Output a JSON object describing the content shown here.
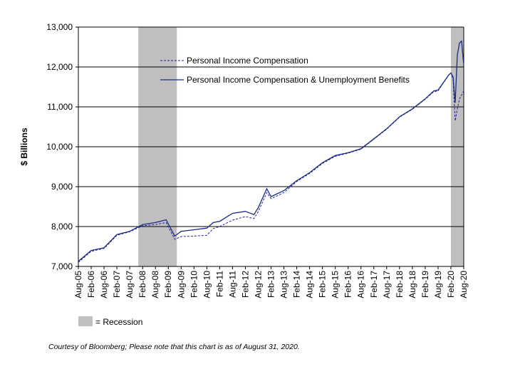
{
  "chart_data": {
    "type": "line",
    "title": "",
    "xlabel": "",
    "ylabel": "$ Billions",
    "ylim": [
      7000,
      13000
    ],
    "yticks": [
      "7,000",
      "8,000",
      "9,000",
      "10,000",
      "11,000",
      "12,000",
      "13,000"
    ],
    "ytick_values": [
      7000,
      8000,
      9000,
      10000,
      11000,
      12000,
      13000
    ],
    "xlim": [
      "2005-08",
      "2020-08"
    ],
    "xticks": [
      "Aug-05",
      "Feb-06",
      "Aug-06",
      "Feb-07",
      "Aug-07",
      "Feb-08",
      "Aug-08",
      "Feb-09",
      "Aug-09",
      "Feb-10",
      "Aug-10",
      "Feb-11",
      "Aug-11",
      "Feb-12",
      "Aug-12",
      "Feb-13",
      "Aug-13",
      "Feb-14",
      "Aug-14",
      "Feb-15",
      "Aug-15",
      "Feb-16",
      "Aug-16",
      "Feb-17",
      "Aug-17",
      "Feb-18",
      "Aug-18",
      "Feb-19",
      "Aug-19",
      "Feb-20",
      "Aug-20"
    ],
    "grid": "horizontal",
    "legend_placement": "top-left",
    "recessions": [
      [
        "2007-12",
        "2009-06"
      ],
      [
        "2020-02",
        "2020-08"
      ]
    ],
    "recession_label": "= Recession",
    "x": [
      "2005-08",
      "2006-02",
      "2006-08",
      "2007-02",
      "2007-08",
      "2008-02",
      "2008-08",
      "2009-01",
      "2009-05",
      "2009-08",
      "2010-02",
      "2010-08",
      "2010-11",
      "2011-02",
      "2011-08",
      "2012-02",
      "2012-06",
      "2012-08",
      "2012-12",
      "2013-02",
      "2013-08",
      "2014-02",
      "2014-08",
      "2015-02",
      "2015-08",
      "2016-02",
      "2016-08",
      "2017-02",
      "2017-08",
      "2018-02",
      "2018-08",
      "2019-02",
      "2019-06",
      "2019-08",
      "2020-01",
      "2020-02",
      "2020-03",
      "2020-04",
      "2020-05",
      "2020-06",
      "2020-07",
      "2020-08"
    ],
    "series": [
      {
        "name": "Personal Income Compensation",
        "style": "dashed",
        "color": "#1f1f99",
        "values": [
          7100,
          7380,
          7450,
          7780,
          7870,
          8020,
          8050,
          8100,
          7680,
          7750,
          7760,
          7780,
          7950,
          8000,
          8160,
          8250,
          8200,
          8370,
          8850,
          8700,
          8850,
          9130,
          9330,
          9580,
          9760,
          9840,
          9940,
          10190,
          10440,
          10740,
          10940,
          11190,
          11380,
          11400,
          11800,
          11850,
          11700,
          10650,
          10950,
          11200,
          11300,
          11400
        ]
      },
      {
        "name": "Personal Income Compensation & Unemployment Benefits",
        "style": "solid",
        "color": "#1a2a80",
        "values": [
          7130,
          7400,
          7470,
          7800,
          7880,
          8050,
          8100,
          8170,
          7760,
          7880,
          7920,
          7960,
          8100,
          8130,
          8330,
          8380,
          8300,
          8470,
          8950,
          8750,
          8900,
          9150,
          9350,
          9600,
          9780,
          9850,
          9950,
          10200,
          10450,
          10750,
          10950,
          11200,
          11400,
          11420,
          11800,
          11850,
          11750,
          11100,
          12300,
          12600,
          12650,
          12050
        ]
      }
    ],
    "footnote": "Courtesy of Bloomberg; Please note that this chart is as of August 31, 2020."
  }
}
